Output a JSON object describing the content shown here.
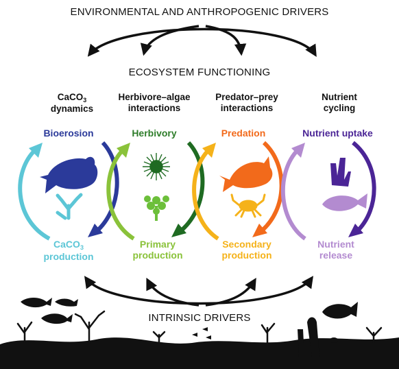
{
  "headings": {
    "top": "ENVIRONMENTAL AND ANTHROPOGENIC DRIVERS",
    "middle": "ECOSYSTEM FUNCTIONING",
    "bottom": "INTRINSIC DRIVERS"
  },
  "categories": [
    {
      "line1": "CaCO",
      "line1_sub": "3",
      "line2": "dynamics"
    },
    {
      "line1": "Herbivore–algae",
      "line2": "interactions"
    },
    {
      "line1": "Predator–prey",
      "line2": "interactions"
    },
    {
      "line1": "Nutrient",
      "line2": "cycling"
    }
  ],
  "cycles": [
    {
      "top": "Bioerosion",
      "bottom_line1": "CaCO",
      "bottom_sub": "3",
      "bottom_line2": "production",
      "top_color": "#2b3a9a",
      "bottom_color": "#5cc6d6"
    },
    {
      "top": "Herbivory",
      "bottom_line1": "Primary",
      "bottom_line2": "production",
      "top_color": "#2e7d2a",
      "bottom_color": "#8ac23a"
    },
    {
      "top": "Predation",
      "bottom_line1": "Secondary",
      "bottom_line2": "production",
      "top_color": "#f26a1b",
      "bottom_color": "#f5b21a"
    },
    {
      "top": "Nutrient uptake",
      "bottom_line1": "Nutrient",
      "bottom_line2": "release",
      "top_color": "#4b2596",
      "bottom_color": "#b38bd0"
    }
  ],
  "icons": [
    "parrotfish-icon",
    "coral-icon",
    "sea-urchin-icon",
    "algae-icon",
    "grouper-fish-icon",
    "crab-icon",
    "sponge-icon",
    "fish-icon",
    "reef-silhouette"
  ]
}
